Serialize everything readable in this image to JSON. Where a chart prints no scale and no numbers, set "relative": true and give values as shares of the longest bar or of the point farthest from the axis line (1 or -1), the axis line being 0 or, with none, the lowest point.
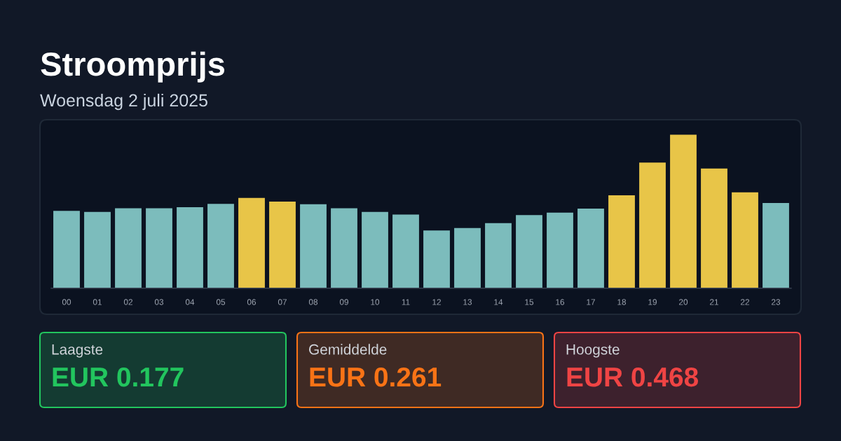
{
  "chart_data": [
    {
      "type": "bar",
      "title": "Stroomprijs",
      "subtitle": "Woensdag 2 juli 2025",
      "relative": true,
      "tick_labels": "x",
      "categories": [
        "00",
        "01",
        "02",
        "03",
        "04",
        "05",
        "06",
        "07",
        "08",
        "09",
        "10",
        "11",
        "12",
        "13",
        "14",
        "15",
        "16",
        "17",
        "18",
        "19",
        "20",
        "21",
        "22",
        "23"
      ],
      "values": [
        0.503,
        0.497,
        0.521,
        0.52,
        0.527,
        0.549,
        0.588,
        0.564,
        0.547,
        0.521,
        0.497,
        0.479,
        0.376,
        0.392,
        0.424,
        0.476,
        0.492,
        0.518,
        0.605,
        0.818,
        1,
        0.779,
        0.624,
        0.555
      ],
      "colors": [
        "#7cbcbc",
        "#7cbcbc",
        "#7cbcbc",
        "#7cbcbc",
        "#7cbcbc",
        "#7cbcbc",
        "#e8c548",
        "#e8c548",
        "#7cbcbc",
        "#7cbcbc",
        "#7cbcbc",
        "#7cbcbc",
        "#7cbcbc",
        "#7cbcbc",
        "#7cbcbc",
        "#7cbcbc",
        "#7cbcbc",
        "#7cbcbc",
        "#e8c548",
        "#e8c548",
        "#e8c548",
        "#e8c548",
        "#e8c548",
        "#7cbcbc"
      ]
    },
    {
      "type": "other",
      "title": "Laagste",
      "annotations": [
        "EUR 0.177"
      ],
      "color": "#22c55e"
    },
    {
      "type": "other",
      "title": "Gemiddelde",
      "annotations": [
        "EUR 0.261"
      ],
      "color": "#f97316"
    },
    {
      "type": "other",
      "title": "Hoogste",
      "annotations": [
        "EUR 0.468"
      ],
      "color": "#ef4444"
    }
  ]
}
